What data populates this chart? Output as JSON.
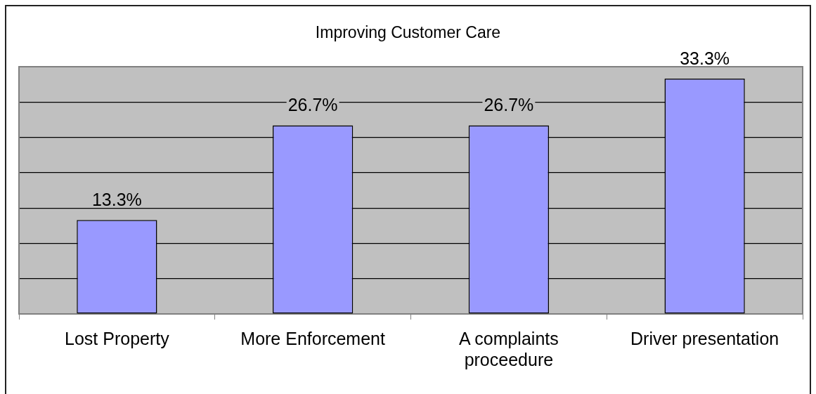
{
  "chart_data": {
    "type": "bar",
    "title": "Improving Customer Care",
    "categories": [
      "Lost Property",
      "More Enforcement",
      "A complaints proceedure",
      "Driver presentation"
    ],
    "values": [
      13.3,
      26.7,
      26.7,
      33.3
    ],
    "color": "#9999ff",
    "value_labels": [
      "13.3%",
      "26.7%",
      "26.7%",
      "33.3%"
    ],
    "ylim": [
      0,
      35
    ],
    "yticks": [
      {
        "value": 0,
        "label": null
      },
      {
        "value": 5,
        "label": null
      },
      {
        "value": 10,
        "label": null
      },
      {
        "value": 15,
        "label": null
      },
      {
        "value": 20,
        "label": null
      },
      {
        "value": 25,
        "label": null
      },
      {
        "value": 30,
        "label": null
      },
      {
        "value": 35,
        "label": null
      }
    ],
    "grid": "y",
    "tick_labels": "x"
  }
}
